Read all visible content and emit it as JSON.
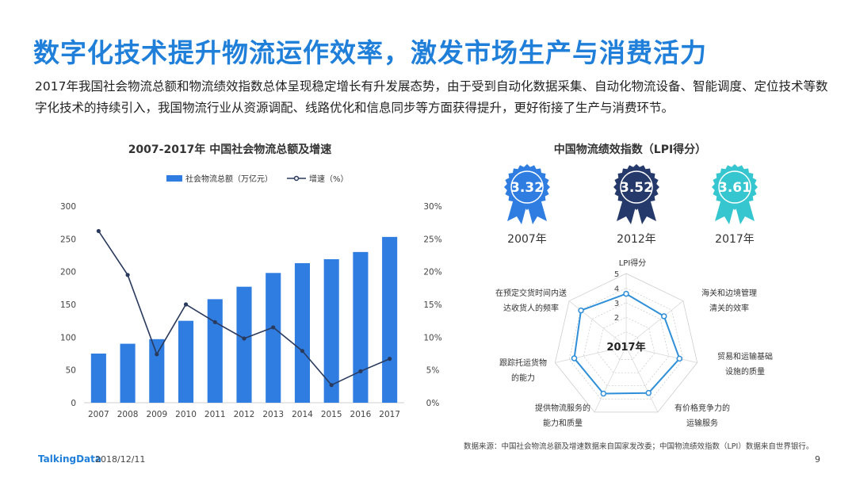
{
  "slide": {
    "title": "数字化技术提升物流运作效率，激发市场生产与消费活力",
    "intro": "2017年我国社会物流总额和物流绩效指数总体呈现稳定增长有升发展态势，由于受到自动化数据采集、自动化物流设备、智能调度、定位技术等数字化技术的持续引入，我国物流行业从资源调配、线路优化和信息同步等方面获得提升，更好衔接了生产与消费环节。",
    "source": "数据来源：中国社会物流总额及增速数据来自国家发改委；中国物流绩效指数（LPI）数据来自世界银行。",
    "brand": "TalkingData",
    "date": "2018/12/11",
    "page_number": "9"
  },
  "colors": {
    "title_blue": "#1f7fd9",
    "bar_blue": "#2f7de1",
    "line_navy": "#2a3a5c",
    "badge_2007": "#2f7de1",
    "badge_2012": "#253a6a",
    "badge_2017": "#35c6cf",
    "radar_stroke": "#2f8fd8"
  },
  "chart_data": [
    {
      "type": "bar",
      "title": "2007-2017年 中国社会物流总额及增速",
      "categories": [
        "2007",
        "2008",
        "2009",
        "2010",
        "2011",
        "2012",
        "2013",
        "2014",
        "2015",
        "2016",
        "2017"
      ],
      "series": [
        {
          "name": "社会物流总额（万亿元）",
          "type": "bar",
          "axis": "left",
          "values": [
            75,
            90,
            97,
            125,
            158,
            177,
            198,
            213,
            219,
            230,
            253
          ]
        },
        {
          "name": "增速（%）",
          "type": "line",
          "axis": "right",
          "values": [
            26.2,
            19.5,
            7.4,
            15.0,
            12.3,
            9.8,
            11.5,
            7.9,
            2.7,
            4.8,
            6.7
          ]
        }
      ],
      "y_left": {
        "min": 0,
        "max": 300,
        "ticks": [
          "0",
          "50",
          "100",
          "150",
          "200",
          "250",
          "300"
        ]
      },
      "y_right": {
        "min": 0,
        "max": 30,
        "ticks": [
          "0%",
          "5%",
          "10%",
          "15%",
          "20%",
          "25%",
          "30%"
        ]
      },
      "legend_position": "top",
      "grid": false
    },
    {
      "type": "badges",
      "title": "中国物流绩效指数（LPI得分）",
      "items": [
        {
          "year": "2007年",
          "value": "3.32"
        },
        {
          "year": "2012年",
          "value": "3.52"
        },
        {
          "year": "2017年",
          "value": "3.61"
        }
      ]
    },
    {
      "type": "radar",
      "center_label": "2017年",
      "range": [
        0,
        5
      ],
      "ring_ticks": [
        "2",
        "3",
        "4",
        "5"
      ],
      "axes": [
        {
          "label": "LPI得分",
          "value": 3.61
        },
        {
          "label": "海关和边境管理清关的效率",
          "value": 3.32
        },
        {
          "label": "贸易和运输基础设施的质量",
          "value": 3.75
        },
        {
          "label": "有价格竞争力的运输服务",
          "value": 3.54
        },
        {
          "label": "提供物流服务的能力和质量",
          "value": 3.59
        },
        {
          "label": "跟踪托运货物的能力",
          "value": 3.65
        },
        {
          "label": "在预定交货时间内送达收货人的频率",
          "value": 3.96
        }
      ]
    }
  ]
}
